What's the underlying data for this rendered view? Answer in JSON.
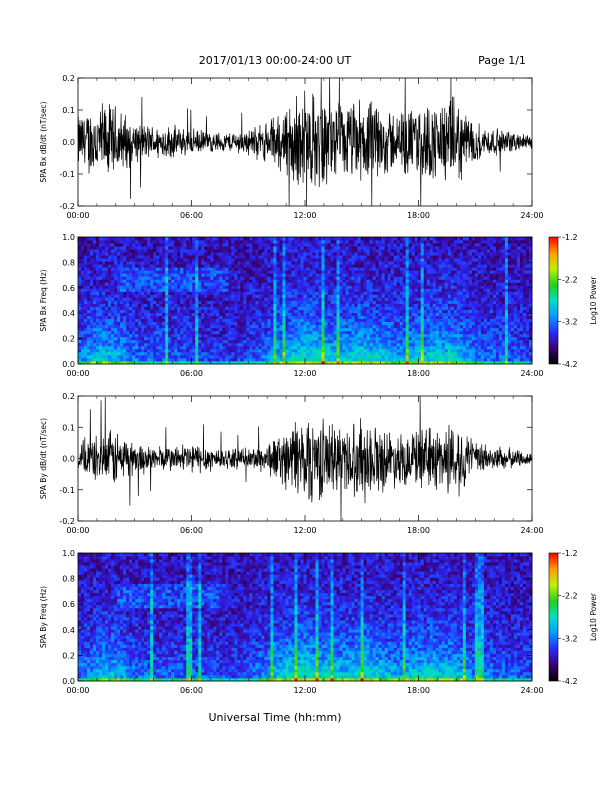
{
  "header": {
    "title": "2017/01/13  00:00-24:00 UT",
    "page": "Page 1/1"
  },
  "xlabel": "Universal Time (hh:mm)",
  "chart_data": [
    {
      "type": "line",
      "ylabel": "SPA Bx dB/dt (nT/sec)",
      "xlim": [
        0,
        24
      ],
      "ylim": [
        -0.2,
        0.2
      ],
      "x_ticks": [
        "00:00",
        "06:00",
        "12:00",
        "18:00",
        "24:00"
      ],
      "y_ticks": [
        "-0.2",
        "-0.1",
        "0.0",
        "0.1",
        "0.2"
      ],
      "envelope": {
        "x": [
          0,
          1,
          2,
          3,
          4,
          5,
          6,
          7,
          8,
          9,
          10,
          11,
          12,
          13,
          14,
          15,
          16,
          17,
          18,
          19,
          20,
          21,
          22,
          23,
          24
        ],
        "amplitude": [
          0.08,
          0.12,
          0.11,
          0.06,
          0.05,
          0.05,
          0.04,
          0.03,
          0.03,
          0.04,
          0.06,
          0.11,
          0.16,
          0.13,
          0.11,
          0.13,
          0.11,
          0.09,
          0.11,
          0.12,
          0.13,
          0.06,
          0.04,
          0.03,
          0.02
        ]
      },
      "color": "#000000"
    },
    {
      "type": "heatmap",
      "ylabel": "SPA Bx Freq (Hz)",
      "xlim": [
        0,
        24
      ],
      "ylim": [
        0.0,
        1.0
      ],
      "x_ticks": [
        "00:00",
        "06:00",
        "12:00",
        "18:00",
        "24:00"
      ],
      "y_ticks": [
        "0.0",
        "0.2",
        "0.4",
        "0.6",
        "0.8",
        "1.0"
      ],
      "colorbar": {
        "label": "Log10 Power",
        "range": [
          -4.2,
          -1.2
        ],
        "ticks": [
          "-1.2",
          "-2.2",
          "-3.2",
          "-4.2"
        ]
      },
      "activity": [
        0.35,
        0.55,
        0.5,
        0.3,
        0.25,
        0.25,
        0.2,
        0.15,
        0.15,
        0.2,
        0.35,
        0.55,
        0.7,
        0.6,
        0.55,
        0.65,
        0.55,
        0.45,
        0.55,
        0.6,
        0.6,
        0.35,
        0.3,
        0.25,
        0.2
      ]
    },
    {
      "type": "line",
      "ylabel": "SPA By dB/dt (nT/sec)",
      "xlim": [
        0,
        24
      ],
      "ylim": [
        -0.2,
        0.2
      ],
      "x_ticks": [
        "00:00",
        "06:00",
        "12:00",
        "18:00",
        "24:00"
      ],
      "y_ticks": [
        "-0.2",
        "-0.1",
        "0.0",
        "0.1",
        "0.2"
      ],
      "envelope": {
        "x": [
          0,
          1,
          2,
          3,
          4,
          5,
          6,
          7,
          8,
          9,
          10,
          11,
          12,
          13,
          14,
          15,
          16,
          17,
          18,
          19,
          20,
          21,
          22,
          23,
          24
        ],
        "amplitude": [
          0.05,
          0.07,
          0.09,
          0.05,
          0.04,
          0.04,
          0.05,
          0.04,
          0.03,
          0.03,
          0.05,
          0.09,
          0.15,
          0.12,
          0.1,
          0.13,
          0.1,
          0.08,
          0.09,
          0.1,
          0.12,
          0.05,
          0.04,
          0.03,
          0.02
        ]
      },
      "color": "#000000"
    },
    {
      "type": "heatmap",
      "ylabel": "SPA By Freq (Hz)",
      "xlim": [
        0,
        24
      ],
      "ylim": [
        0.0,
        1.0
      ],
      "x_ticks": [
        "00:00",
        "06:00",
        "12:00",
        "18:00",
        "24:00"
      ],
      "y_ticks": [
        "0.0",
        "0.2",
        "0.4",
        "0.6",
        "0.8",
        "1.0"
      ],
      "colorbar": {
        "label": "Log10 Power",
        "range": [
          -4.2,
          -1.2
        ],
        "ticks": [
          "-1.2",
          "-2.2",
          "-3.2",
          "-4.2"
        ]
      },
      "activity": [
        0.3,
        0.5,
        0.5,
        0.3,
        0.25,
        0.25,
        0.25,
        0.2,
        0.2,
        0.25,
        0.4,
        0.6,
        0.7,
        0.6,
        0.55,
        0.65,
        0.55,
        0.45,
        0.6,
        0.6,
        0.55,
        0.35,
        0.3,
        0.25,
        0.2
      ]
    }
  ]
}
